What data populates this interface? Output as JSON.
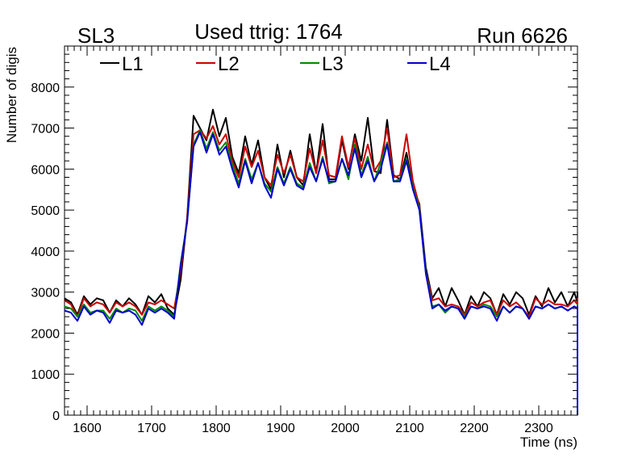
{
  "header": {
    "left_label": "SL3",
    "title": "Used ttrig: 1764",
    "right_label": "Run 6626"
  },
  "chart_data": {
    "type": "line",
    "xlabel": "Time (ns)",
    "ylabel": "Number of digis",
    "xlim": [
      1565,
      2360
    ],
    "ylim": [
      0,
      9000
    ],
    "x_ticks": [
      1600,
      1700,
      1800,
      1900,
      2000,
      2100,
      2200,
      2300
    ],
    "y_ticks": [
      0,
      1000,
      2000,
      3000,
      4000,
      5000,
      6000,
      7000,
      8000
    ],
    "x_step": 10,
    "x_start": 1565,
    "legend_position": "top",
    "series": [
      {
        "name": "L1",
        "color": "#000000",
        "values": [
          2850,
          2750,
          2450,
          2900,
          2700,
          2850,
          2800,
          2500,
          2800,
          2650,
          2850,
          2700,
          2450,
          2900,
          2750,
          2950,
          2600,
          2450,
          3300,
          4800,
          7300,
          7000,
          6700,
          7450,
          6800,
          7250,
          6300,
          5900,
          6800,
          6100,
          6700,
          5800,
          5500,
          6600,
          5800,
          6450,
          5800,
          5600,
          6850,
          5900,
          7100,
          5750,
          5750,
          6700,
          6000,
          6850,
          6200,
          7250,
          5950,
          5900,
          7200,
          5850,
          5750,
          6400,
          5550,
          5150,
          3600,
          2850,
          3100,
          2650,
          3100,
          2800,
          2450,
          2900,
          2650,
          3000,
          2850,
          2450,
          2950,
          2700,
          3000,
          2850,
          2450,
          2900,
          2650,
          3100,
          2750,
          3000,
          2650,
          3000,
          2750,
          2450,
          3000,
          0
        ]
      },
      {
        "name": "L2",
        "color": "#cc0000",
        "values": [
          2800,
          2700,
          2400,
          2850,
          2650,
          2750,
          2700,
          2500,
          2750,
          2650,
          2750,
          2650,
          2450,
          2750,
          2700,
          2800,
          2700,
          2600,
          3500,
          4800,
          6850,
          6950,
          6750,
          7050,
          6600,
          6850,
          6200,
          5800,
          6550,
          6050,
          6450,
          5800,
          5600,
          6350,
          5900,
          6350,
          5800,
          5700,
          6500,
          5900,
          6700,
          5850,
          5800,
          6800,
          6050,
          6750,
          6000,
          6600,
          5950,
          6200,
          7000,
          5800,
          5850,
          6850,
          5700,
          5100,
          3500,
          2800,
          2850,
          2650,
          2700,
          2650,
          2450,
          2750,
          2650,
          2750,
          2800,
          2450,
          2800,
          2650,
          2750,
          2600,
          2400,
          2850,
          2700,
          2800,
          2700,
          2700,
          2650,
          2800,
          2700,
          2550,
          2850,
          0
        ]
      },
      {
        "name": "L3",
        "color": "#008800",
        "values": [
          2650,
          2600,
          2400,
          2700,
          2500,
          2550,
          2550,
          2350,
          2600,
          2500,
          2600,
          2550,
          2300,
          2650,
          2550,
          2650,
          2550,
          2400,
          3700,
          4700,
          6600,
          6950,
          6500,
          6900,
          6450,
          6650,
          6100,
          5650,
          6250,
          5750,
          6150,
          5650,
          5450,
          6050,
          5650,
          6050,
          5650,
          5550,
          6150,
          5700,
          6300,
          5650,
          5700,
          6250,
          5750,
          6600,
          5850,
          6300,
          5700,
          6150,
          6650,
          5700,
          5750,
          6250,
          5550,
          5050,
          3500,
          2650,
          2700,
          2500,
          2650,
          2600,
          2400,
          2650,
          2600,
          2700,
          2650,
          2400,
          2650,
          2500,
          2650,
          2600,
          2350,
          2650,
          2600,
          2700,
          2600,
          2650,
          2550,
          2650,
          2600,
          2350,
          2700,
          0
        ]
      },
      {
        "name": "L4",
        "color": "#0000cc",
        "values": [
          2550,
          2500,
          2300,
          2650,
          2450,
          2550,
          2500,
          2250,
          2550,
          2500,
          2550,
          2450,
          2200,
          2600,
          2500,
          2600,
          2500,
          2350,
          3650,
          4700,
          6550,
          6900,
          6400,
          6850,
          6350,
          6550,
          6000,
          5550,
          6200,
          5650,
          6150,
          5600,
          5300,
          6000,
          5600,
          6000,
          5600,
          5500,
          6050,
          5700,
          6250,
          5700,
          5700,
          6250,
          5850,
          6500,
          5800,
          6200,
          5700,
          6000,
          6600,
          5700,
          5700,
          6200,
          5500,
          5000,
          3450,
          2600,
          2700,
          2550,
          2650,
          2600,
          2350,
          2650,
          2600,
          2650,
          2600,
          2300,
          2650,
          2500,
          2650,
          2600,
          2350,
          2650,
          2600,
          2700,
          2600,
          2650,
          2550,
          2650,
          2600,
          2300,
          2650,
          0
        ]
      }
    ]
  }
}
